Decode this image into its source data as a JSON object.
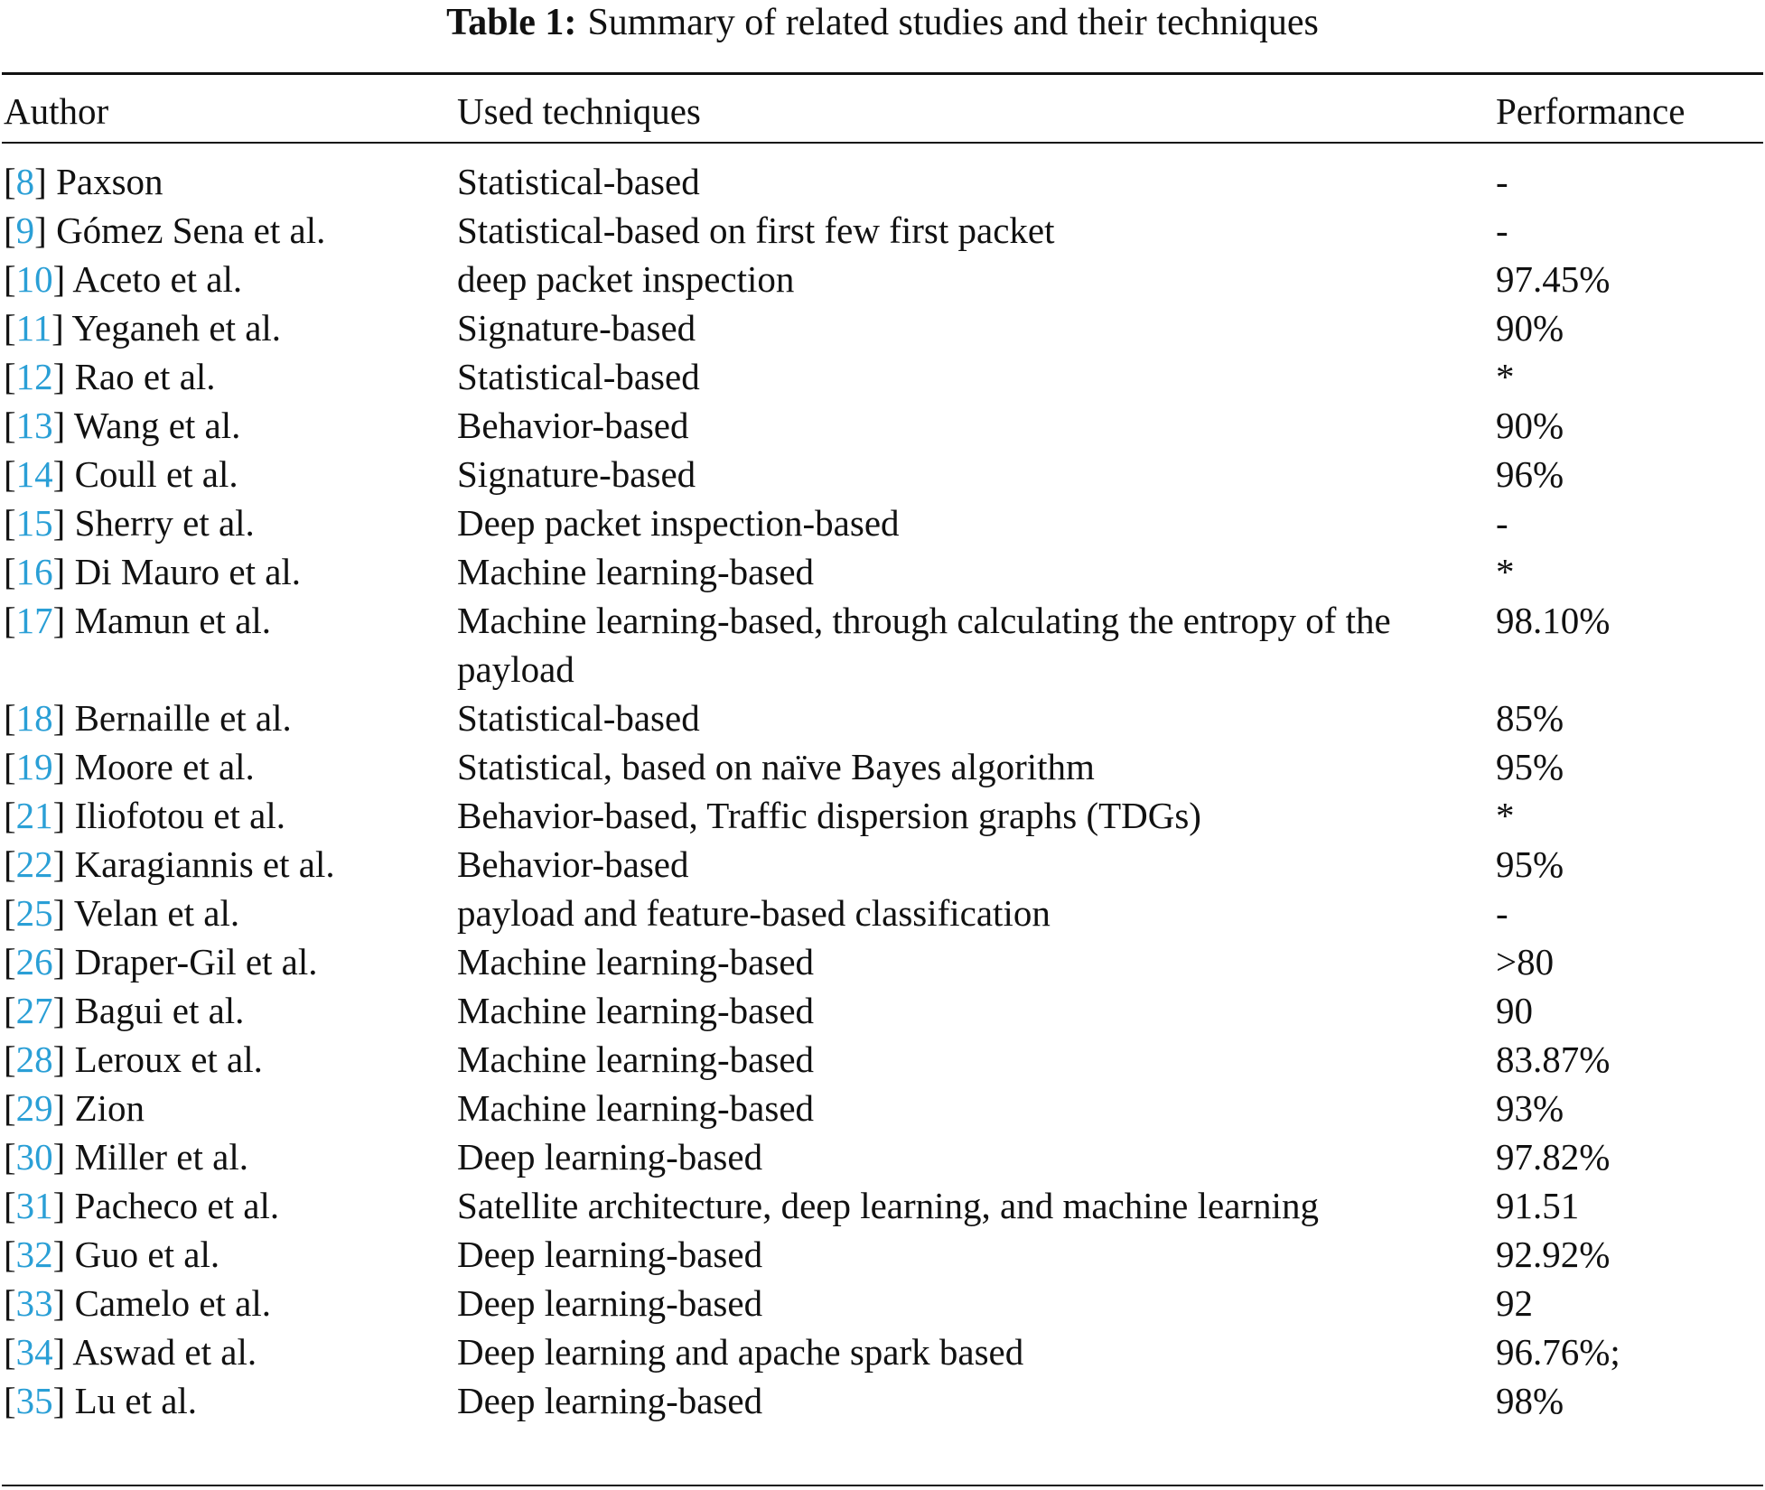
{
  "caption": {
    "label": "Table 1:",
    "text": "Summary of related studies and their techniques"
  },
  "headers": [
    "Author",
    "Used techniques",
    "Performance"
  ],
  "rows": [
    {
      "ref": "8",
      "author": "Paxson",
      "technique": "Statistical-based",
      "performance": "-"
    },
    {
      "ref": "9",
      "author": "Gómez Sena et al.",
      "technique": "Statistical-based on first few first packet",
      "performance": "-"
    },
    {
      "ref": "10",
      "author": "Aceto et al.",
      "technique": "deep packet inspection",
      "performance": "97.45%"
    },
    {
      "ref": "11",
      "author": "Yeganeh et al.",
      "technique": "Signature-based",
      "performance": "90%"
    },
    {
      "ref": "12",
      "author": "Rao et al.",
      "technique": "Statistical-based",
      "performance": "*"
    },
    {
      "ref": "13",
      "author": "Wang et al.",
      "technique": "Behavior-based",
      "performance": "90%"
    },
    {
      "ref": "14",
      "author": "Coull et al.",
      "technique": "Signature-based",
      "performance": "96%"
    },
    {
      "ref": "15",
      "author": "Sherry et al.",
      "technique": "Deep packet inspection-based",
      "performance": "-"
    },
    {
      "ref": "16",
      "author": "Di Mauro et al.",
      "technique": "Machine learning-based",
      "performance": "*"
    },
    {
      "ref": "17",
      "author": "Mamun et al.",
      "technique": "Machine learning-based, through calculating the entropy of the payload",
      "performance": "98.10%"
    },
    {
      "ref": "18",
      "author": "Bernaille et al.",
      "technique": "Statistical-based",
      "performance": "85%"
    },
    {
      "ref": "19",
      "author": "Moore et al.",
      "technique": "Statistical, based on naïve Bayes algorithm",
      "performance": "95%"
    },
    {
      "ref": "21",
      "author": "Iliofotou et al.",
      "technique": "Behavior-based, Traffic dispersion graphs (TDGs)",
      "performance": "*"
    },
    {
      "ref": "22",
      "author": "Karagiannis et al.",
      "technique": "Behavior-based",
      "performance": "95%"
    },
    {
      "ref": "25",
      "author": "Velan et al.",
      "technique": "payload and feature-based classification",
      "performance": "-"
    },
    {
      "ref": "26",
      "author": "Draper-Gil et al.",
      "technique": "Machine learning-based",
      "performance": ">80"
    },
    {
      "ref": "27",
      "author": "Bagui et al.",
      "technique": "Machine learning-based",
      "performance": "90"
    },
    {
      "ref": "28",
      "author": "Leroux et al.",
      "technique": "Machine learning-based",
      "performance": "83.87%"
    },
    {
      "ref": "29",
      "author": "Zion",
      "technique": "Machine learning-based",
      "performance": "93%"
    },
    {
      "ref": "30",
      "author": "Miller et al.",
      "technique": "Deep learning-based",
      "performance": "97.82%"
    },
    {
      "ref": "31",
      "author": "Pacheco et al.",
      "technique": "Satellite architecture, deep learning, and machine learning",
      "performance": "91.51"
    },
    {
      "ref": "32",
      "author": "Guo et al.",
      "technique": "Deep learning-based",
      "performance": "92.92%"
    },
    {
      "ref": "33",
      "author": "Camelo et al.",
      "technique": "Deep learning-based",
      "performance": "92"
    },
    {
      "ref": "34",
      "author": "Aswad et al.",
      "technique": "Deep learning and apache spark based",
      "performance": "96.76%;"
    },
    {
      "ref": "35",
      "author": "Lu et al.",
      "technique": "Deep learning-based",
      "performance": "98%"
    }
  ],
  "colors": {
    "reference_link": "#2a9fd6",
    "text": "#111111"
  }
}
